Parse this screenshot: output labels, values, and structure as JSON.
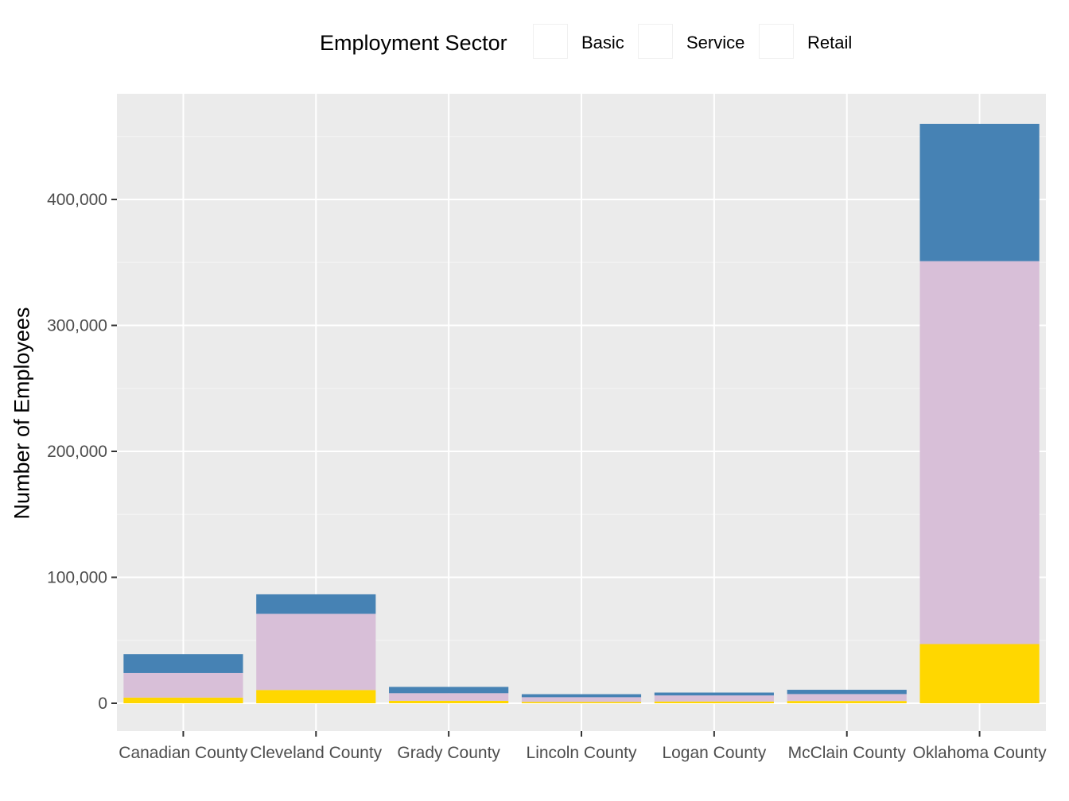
{
  "chart_data": {
    "type": "bar",
    "stacked": true,
    "title": "",
    "xlabel": "",
    "ylabel": "Number of Employees",
    "ylim": [
      0,
      460000
    ],
    "yticks": [
      0,
      100000,
      200000,
      300000,
      400000
    ],
    "ytick_labels": [
      "0",
      "100,000",
      "200,000",
      "300,000",
      "400,000"
    ],
    "categories": [
      "Canadian County",
      "Cleveland County",
      "Grady County",
      "Lincoln County",
      "Logan County",
      "McClain County",
      "Oklahoma County"
    ],
    "series": [
      {
        "name": "Retail",
        "color": "#FFD700",
        "values": [
          4500,
          10500,
          1900,
          1100,
          1400,
          1800,
          47000
        ]
      },
      {
        "name": "Service",
        "color": "#D8BFD8",
        "values": [
          19500,
          60500,
          6100,
          3700,
          4800,
          5500,
          304000
        ]
      },
      {
        "name": "Basic",
        "color": "#4682B4",
        "values": [
          15000,
          15500,
          5000,
          2400,
          2300,
          3400,
          109000
        ]
      }
    ],
    "legend": {
      "title": "Employment Sector",
      "position": "top",
      "entries": [
        "Basic",
        "Service",
        "Retail"
      ]
    },
    "grid": true,
    "panel_background": "#EBEBEB"
  }
}
